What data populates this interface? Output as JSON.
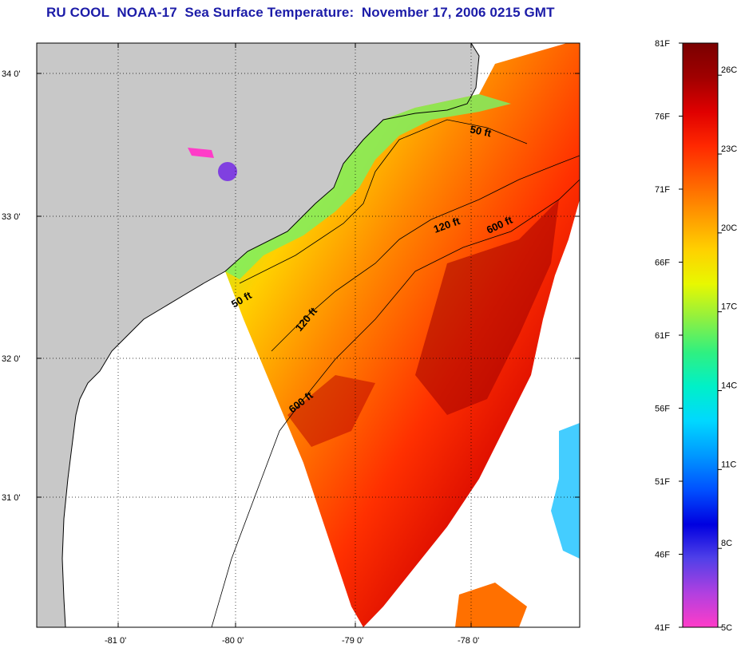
{
  "title": "RU COOL  NOAA-17  Sea Surface Temperature:  November 17, 2006 0215 GMT",
  "colors": {
    "land": "#c8c8c8",
    "nodata": "#ffffff",
    "title": "#1c1ca8"
  },
  "map": {
    "lat_ticks": [
      "34 0'",
      "33 0'",
      "32 0'",
      "31 0'"
    ],
    "lon_ticks": [
      "-81 0'",
      "-80 0'",
      "-79 0'",
      "-78 0'"
    ],
    "contour_labels": [
      "50 ft",
      "120 ft",
      "600 ft",
      "50 ft",
      "120 ft",
      "600 ft"
    ]
  },
  "colorbar": {
    "f_labels": [
      "81F",
      "76F",
      "71F",
      "66F",
      "61F",
      "56F",
      "51F",
      "46F",
      "41F"
    ],
    "c_labels": [
      "26C",
      "23C",
      "20C",
      "17C",
      "14C",
      "11C",
      "8C",
      "5C"
    ],
    "stops": [
      "#ff3cc8",
      "#b040e0",
      "#5040e8",
      "#0000e0",
      "#0050ff",
      "#0098ff",
      "#00d8ff",
      "#00f0c8",
      "#30f080",
      "#90f040",
      "#e8f800",
      "#ffd000",
      "#ff9800",
      "#ff6000",
      "#ff2800",
      "#e00000",
      "#a00000",
      "#7a0000"
    ]
  }
}
